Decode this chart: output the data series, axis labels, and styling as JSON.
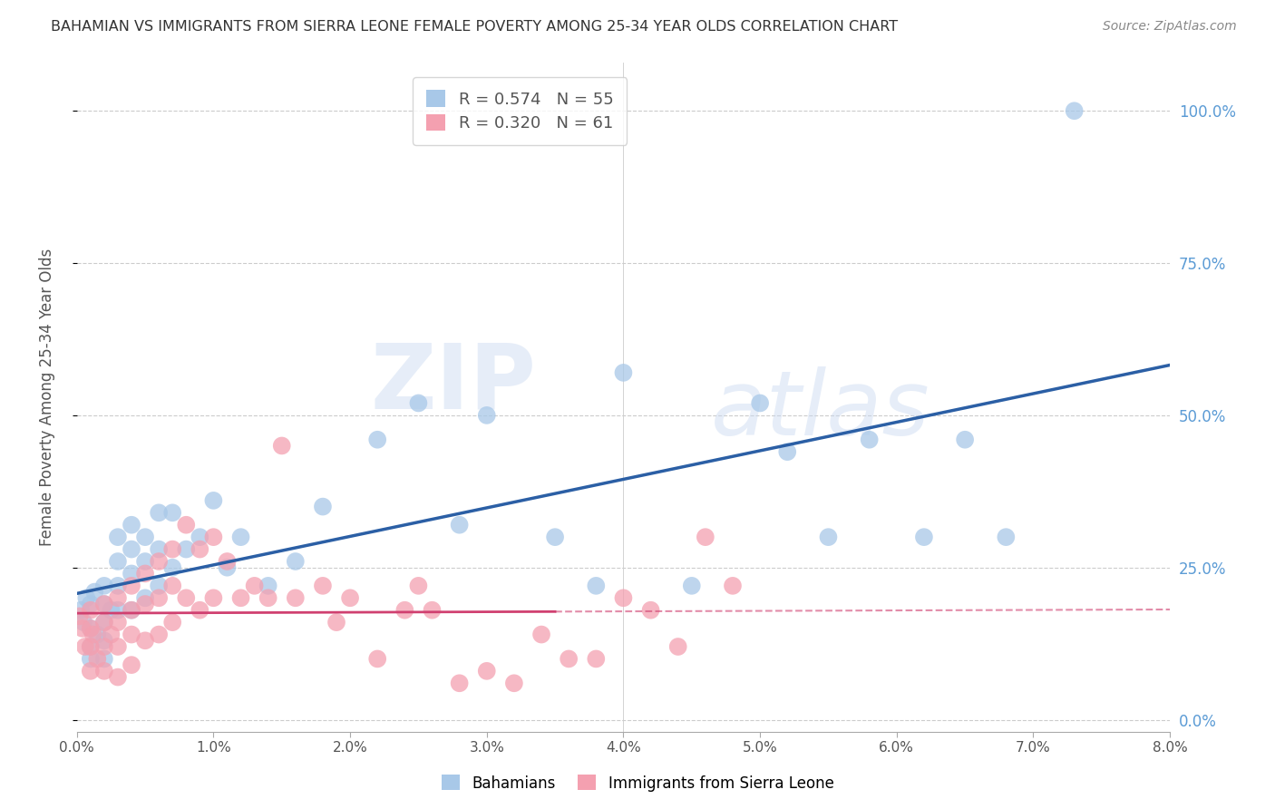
{
  "title": "BAHAMIAN VS IMMIGRANTS FROM SIERRA LEONE FEMALE POVERTY AMONG 25-34 YEAR OLDS CORRELATION CHART",
  "source": "Source: ZipAtlas.com",
  "ylabel": "Female Poverty Among 25-34 Year Olds",
  "xlim": [
    0.0,
    0.08
  ],
  "ylim": [
    -0.02,
    1.08
  ],
  "xticks": [
    0.0,
    0.01,
    0.02,
    0.03,
    0.04,
    0.05,
    0.06,
    0.07,
    0.08
  ],
  "xticklabels": [
    "0.0%",
    "1.0%",
    "2.0%",
    "3.0%",
    "4.0%",
    "5.0%",
    "6.0%",
    "7.0%",
    "8.0%"
  ],
  "yticks_right": [
    0.0,
    0.25,
    0.5,
    0.75,
    1.0
  ],
  "yticklabels_right": [
    "0.0%",
    "25.0%",
    "50.0%",
    "75.0%",
    "100.0%"
  ],
  "bahamians_color": "#a8c8e8",
  "sierra_leone_color": "#f4a0b0",
  "blue_line_color": "#2b5fa5",
  "pink_line_color": "#d04070",
  "R_bahamians": 0.574,
  "N_bahamians": 55,
  "R_sierra_leone": 0.32,
  "N_sierra_leone": 61,
  "legend_label_1": "Bahamians",
  "legend_label_2": "Immigrants from Sierra Leone",
  "watermark": "ZIPAtlas",
  "bah_x": [
    0.0003,
    0.0005,
    0.0007,
    0.001,
    0.001,
    0.001,
    0.001,
    0.0013,
    0.0015,
    0.002,
    0.002,
    0.002,
    0.002,
    0.002,
    0.0025,
    0.003,
    0.003,
    0.003,
    0.003,
    0.004,
    0.004,
    0.004,
    0.004,
    0.005,
    0.005,
    0.005,
    0.006,
    0.006,
    0.006,
    0.007,
    0.007,
    0.008,
    0.009,
    0.01,
    0.011,
    0.012,
    0.014,
    0.016,
    0.018,
    0.022,
    0.025,
    0.028,
    0.03,
    0.035,
    0.038,
    0.04,
    0.045,
    0.05,
    0.052,
    0.055,
    0.058,
    0.062,
    0.065,
    0.068,
    0.073
  ],
  "bah_y": [
    0.18,
    0.16,
    0.2,
    0.19,
    0.15,
    0.12,
    0.1,
    0.21,
    0.14,
    0.22,
    0.19,
    0.16,
    0.13,
    0.1,
    0.18,
    0.3,
    0.26,
    0.22,
    0.18,
    0.32,
    0.28,
    0.24,
    0.18,
    0.3,
    0.26,
    0.2,
    0.34,
    0.28,
    0.22,
    0.34,
    0.25,
    0.28,
    0.3,
    0.36,
    0.25,
    0.3,
    0.22,
    0.26,
    0.35,
    0.46,
    0.52,
    0.32,
    0.5,
    0.3,
    0.22,
    0.57,
    0.22,
    0.52,
    0.44,
    0.3,
    0.46,
    0.3,
    0.46,
    0.3,
    1.0
  ],
  "sl_x": [
    0.0002,
    0.0004,
    0.0006,
    0.001,
    0.001,
    0.001,
    0.001,
    0.0012,
    0.0015,
    0.002,
    0.002,
    0.002,
    0.002,
    0.0025,
    0.003,
    0.003,
    0.003,
    0.003,
    0.004,
    0.004,
    0.004,
    0.004,
    0.005,
    0.005,
    0.005,
    0.006,
    0.006,
    0.006,
    0.007,
    0.007,
    0.007,
    0.008,
    0.008,
    0.009,
    0.009,
    0.01,
    0.01,
    0.011,
    0.012,
    0.013,
    0.014,
    0.015,
    0.016,
    0.018,
    0.019,
    0.02,
    0.022,
    0.024,
    0.025,
    0.026,
    0.028,
    0.03,
    0.032,
    0.034,
    0.036,
    0.038,
    0.04,
    0.042,
    0.044,
    0.046,
    0.048
  ],
  "sl_y": [
    0.17,
    0.15,
    0.12,
    0.18,
    0.15,
    0.12,
    0.08,
    0.14,
    0.1,
    0.19,
    0.16,
    0.12,
    0.08,
    0.14,
    0.2,
    0.16,
    0.12,
    0.07,
    0.22,
    0.18,
    0.14,
    0.09,
    0.24,
    0.19,
    0.13,
    0.26,
    0.2,
    0.14,
    0.28,
    0.22,
    0.16,
    0.32,
    0.2,
    0.28,
    0.18,
    0.3,
    0.2,
    0.26,
    0.2,
    0.22,
    0.2,
    0.45,
    0.2,
    0.22,
    0.16,
    0.2,
    0.1,
    0.18,
    0.22,
    0.18,
    0.06,
    0.08,
    0.06,
    0.14,
    0.1,
    0.1,
    0.2,
    0.18,
    0.12,
    0.3,
    0.22
  ]
}
